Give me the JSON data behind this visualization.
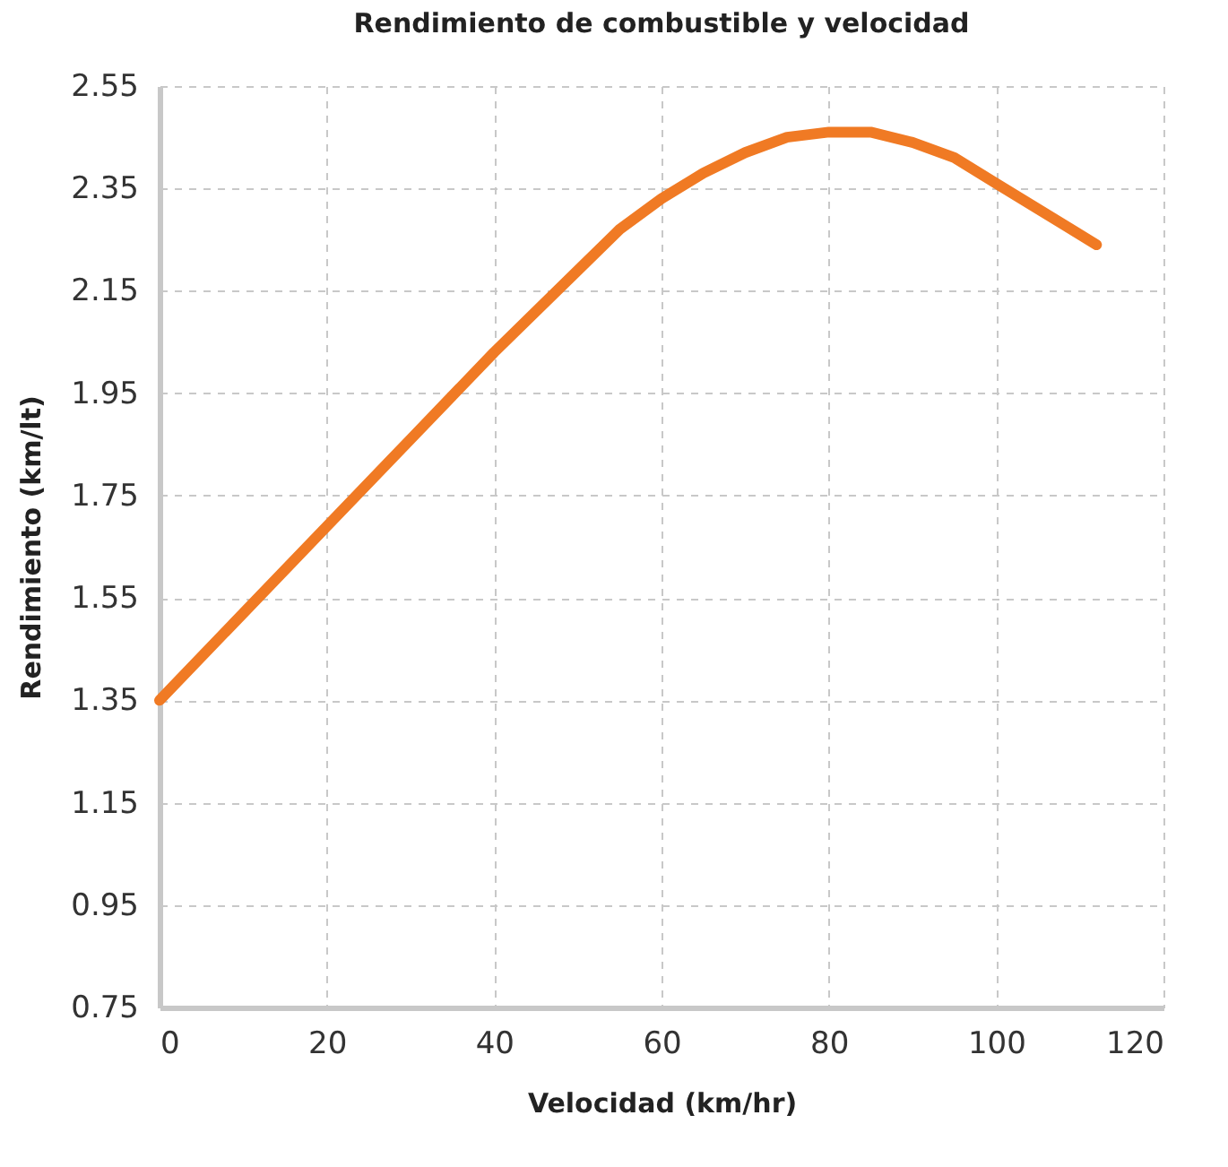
{
  "chart_data": {
    "type": "line",
    "title": "Rendimiento de combustible y velocidad",
    "xlabel": "Velocidad (km/hr)",
    "ylabel": "Rendimiento (km/lt)",
    "x": [
      0,
      10,
      20,
      30,
      40,
      50,
      55,
      60,
      65,
      70,
      75,
      80,
      85,
      90,
      95,
      100,
      105,
      112
    ],
    "series": [
      {
        "color": "#f07a24",
        "values": [
          1.35,
          1.52,
          1.69,
          1.86,
          2.03,
          2.19,
          2.27,
          2.33,
          2.38,
          2.42,
          2.45,
          2.46,
          2.46,
          2.44,
          2.41,
          2.36,
          2.31,
          2.24
        ]
      }
    ],
    "xlim": [
      0,
      120
    ],
    "xticks": [
      0,
      20,
      40,
      60,
      80,
      100,
      120
    ],
    "ylim": [
      0.75,
      2.55
    ],
    "yticks": [
      0.75,
      0.95,
      1.15,
      1.35,
      1.55,
      1.75,
      1.95,
      2.15,
      2.35,
      2.55
    ],
    "grid": true,
    "marker": "none",
    "line_style": "solid"
  }
}
